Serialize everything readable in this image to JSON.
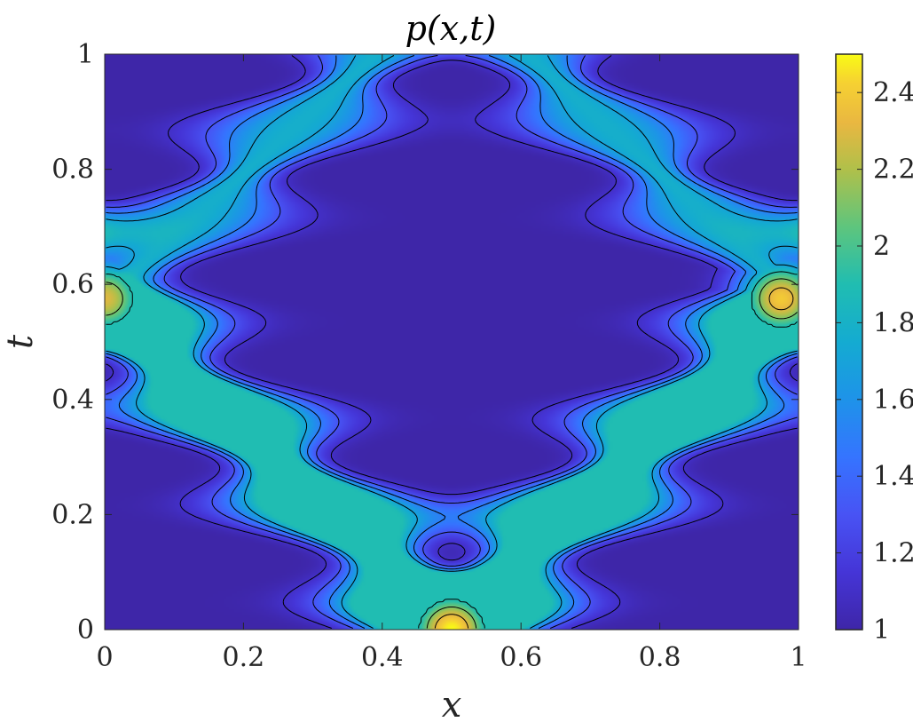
{
  "chart_data": {
    "type": "heatmap",
    "title": "p(x,t)",
    "xlabel": "x",
    "ylabel": "t",
    "xlim": [
      0,
      1
    ],
    "ylim": [
      0,
      1
    ],
    "xticks": [
      "0",
      "0.2",
      "0.4",
      "0.6",
      "0.8",
      "1"
    ],
    "yticks": [
      "0",
      "0.2",
      "0.4",
      "0.6",
      "0.8",
      "1"
    ],
    "colorbar": {
      "range": [
        1,
        2.5
      ],
      "ticks": [
        "1",
        "1.2",
        "1.4",
        "1.6",
        "1.8",
        "2",
        "2.2",
        "2.4"
      ],
      "colormap": "parula"
    },
    "contour_levels": [
      1.1,
      1.3,
      1.5,
      1.7,
      1.9,
      2.1,
      2.3
    ],
    "contour_color": "#000000",
    "peaks": [
      {
        "x": 0.5,
        "t": 0.0,
        "value": 2.5
      },
      {
        "x": 0.0,
        "t": 0.575,
        "value": 2.3
      },
      {
        "x": 0.975,
        "t": 0.575,
        "value": 2.4
      }
    ],
    "background_value": 1.0
  }
}
